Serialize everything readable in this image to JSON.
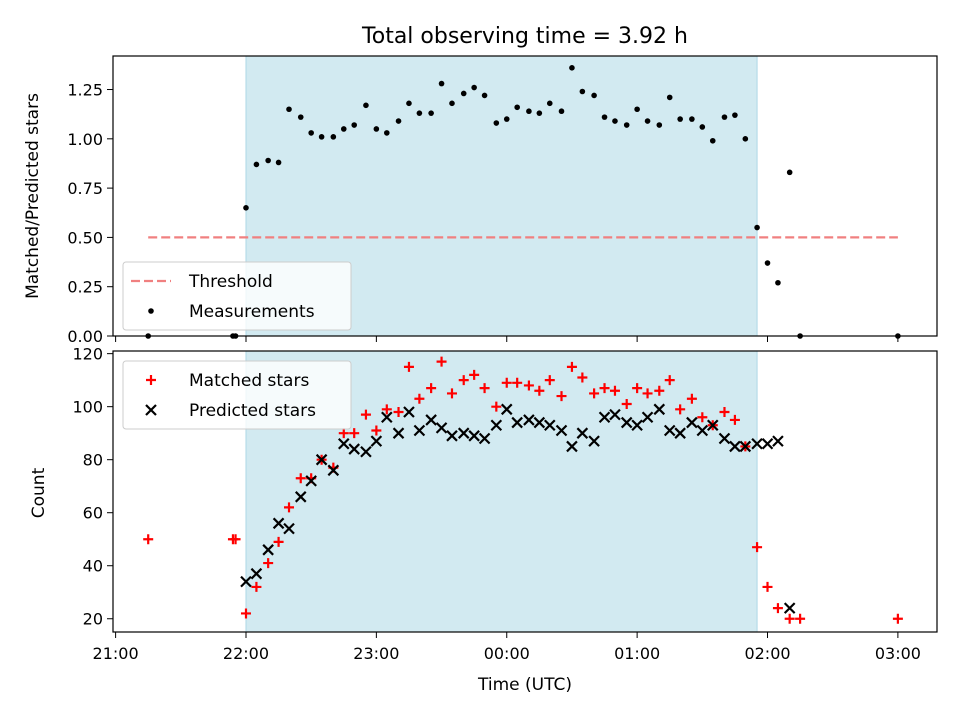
{
  "chart_data": {
    "title": "Total observing time = 3.92 h",
    "xlabel": "Time (UTC)",
    "x_ticks": [
      "21:00",
      "22:00",
      "23:00",
      "00:00",
      "01:00",
      "02:00",
      "03:00"
    ],
    "x_unit": "hours since 21:00 UTC",
    "x_range": [
      -0.02,
      6.3
    ],
    "shaded_window": [
      1.0,
      4.92
    ],
    "shade_color": "#add8e6",
    "panels": [
      {
        "type": "scatter",
        "ylabel": "Matched/Predicted stars",
        "ylim": [
          0,
          1.42
        ],
        "y_ticks": [
          "0.00",
          "0.25",
          "0.50",
          "0.75",
          "1.00",
          "1.25"
        ],
        "y_tick_values": [
          0,
          0.25,
          0.5,
          0.75,
          1.0,
          1.25
        ],
        "legend": "lower-left",
        "threshold": {
          "name": "Threshold",
          "value": 0.5,
          "x_from": 0.25,
          "x_to": 6.0,
          "color": "#f08080"
        },
        "series": [
          {
            "name": "Measurements",
            "marker": "dot",
            "color": "#000000",
            "points": [
              [
                0.25,
                0.0
              ],
              [
                0.9,
                0.0
              ],
              [
                0.92,
                0.0
              ],
              [
                1.0,
                0.65
              ],
              [
                1.08,
                0.87
              ],
              [
                1.17,
                0.89
              ],
              [
                1.25,
                0.88
              ],
              [
                1.33,
                1.15
              ],
              [
                1.42,
                1.11
              ],
              [
                1.5,
                1.03
              ],
              [
                1.58,
                1.01
              ],
              [
                1.67,
                1.01
              ],
              [
                1.75,
                1.05
              ],
              [
                1.83,
                1.07
              ],
              [
                1.92,
                1.17
              ],
              [
                2.0,
                1.05
              ],
              [
                2.08,
                1.03
              ],
              [
                2.17,
                1.09
              ],
              [
                2.25,
                1.18
              ],
              [
                2.33,
                1.13
              ],
              [
                2.42,
                1.13
              ],
              [
                2.5,
                1.28
              ],
              [
                2.58,
                1.18
              ],
              [
                2.67,
                1.23
              ],
              [
                2.75,
                1.26
              ],
              [
                2.83,
                1.22
              ],
              [
                2.92,
                1.08
              ],
              [
                3.0,
                1.1
              ],
              [
                3.08,
                1.16
              ],
              [
                3.17,
                1.14
              ],
              [
                3.25,
                1.13
              ],
              [
                3.33,
                1.18
              ],
              [
                3.42,
                1.14
              ],
              [
                3.5,
                1.36
              ],
              [
                3.58,
                1.24
              ],
              [
                3.67,
                1.22
              ],
              [
                3.75,
                1.11
              ],
              [
                3.83,
                1.09
              ],
              [
                3.92,
                1.07
              ],
              [
                4.0,
                1.15
              ],
              [
                4.08,
                1.09
              ],
              [
                4.17,
                1.07
              ],
              [
                4.25,
                1.21
              ],
              [
                4.33,
                1.1
              ],
              [
                4.42,
                1.1
              ],
              [
                4.5,
                1.06
              ],
              [
                4.58,
                0.99
              ],
              [
                4.67,
                1.11
              ],
              [
                4.75,
                1.12
              ],
              [
                4.83,
                1.0
              ],
              [
                4.92,
                0.55
              ],
              [
                5.0,
                0.37
              ],
              [
                5.08,
                0.27
              ],
              [
                5.17,
                0.83
              ],
              [
                5.25,
                0.0
              ],
              [
                6.0,
                0.0
              ]
            ]
          }
        ]
      },
      {
        "type": "scatter",
        "ylabel": "Count",
        "ylim": [
          15,
          121
        ],
        "y_ticks": [
          "20",
          "40",
          "60",
          "80",
          "100",
          "120"
        ],
        "y_tick_values": [
          20,
          40,
          60,
          80,
          100,
          120
        ],
        "legend": "top-left",
        "series": [
          {
            "name": "Matched stars",
            "marker": "plus",
            "color": "#ff0000",
            "points": [
              [
                0.25,
                50
              ],
              [
                0.9,
                50
              ],
              [
                0.92,
                50
              ],
              [
                1.0,
                22
              ],
              [
                1.08,
                32
              ],
              [
                1.17,
                41
              ],
              [
                1.25,
                49
              ],
              [
                1.33,
                62
              ],
              [
                1.42,
                73
              ],
              [
                1.5,
                73
              ],
              [
                1.58,
                80
              ],
              [
                1.67,
                77
              ],
              [
                1.75,
                90
              ],
              [
                1.83,
                90
              ],
              [
                1.92,
                97
              ],
              [
                2.0,
                91
              ],
              [
                2.08,
                99
              ],
              [
                2.17,
                98
              ],
              [
                2.25,
                115
              ],
              [
                2.33,
                103
              ],
              [
                2.42,
                107
              ],
              [
                2.5,
                117
              ],
              [
                2.58,
                105
              ],
              [
                2.67,
                110
              ],
              [
                2.75,
                112
              ],
              [
                2.83,
                107
              ],
              [
                2.92,
                100
              ],
              [
                3.0,
                109
              ],
              [
                3.08,
                109
              ],
              [
                3.17,
                108
              ],
              [
                3.25,
                106
              ],
              [
                3.33,
                110
              ],
              [
                3.42,
                104
              ],
              [
                3.5,
                115
              ],
              [
                3.58,
                111
              ],
              [
                3.67,
                105
              ],
              [
                3.75,
                107
              ],
              [
                3.83,
                106
              ],
              [
                3.92,
                101
              ],
              [
                4.0,
                107
              ],
              [
                4.08,
                105
              ],
              [
                4.17,
                106
              ],
              [
                4.25,
                110
              ],
              [
                4.33,
                99
              ],
              [
                4.42,
                103
              ],
              [
                4.5,
                96
              ],
              [
                4.58,
                93
              ],
              [
                4.67,
                98
              ],
              [
                4.75,
                95
              ],
              [
                4.83,
                85
              ],
              [
                4.92,
                47
              ],
              [
                5.0,
                32
              ],
              [
                5.08,
                24
              ],
              [
                5.17,
                20
              ],
              [
                5.25,
                20
              ],
              [
                6.0,
                20
              ]
            ]
          },
          {
            "name": "Predicted stars",
            "marker": "x",
            "color": "#000000",
            "points": [
              [
                1.0,
                34
              ],
              [
                1.08,
                37
              ],
              [
                1.17,
                46
              ],
              [
                1.25,
                56
              ],
              [
                1.33,
                54
              ],
              [
                1.42,
                66
              ],
              [
                1.5,
                72
              ],
              [
                1.58,
                80
              ],
              [
                1.67,
                76
              ],
              [
                1.75,
                86
              ],
              [
                1.83,
                84
              ],
              [
                1.92,
                83
              ],
              [
                2.0,
                87
              ],
              [
                2.08,
                96
              ],
              [
                2.17,
                90
              ],
              [
                2.25,
                98
              ],
              [
                2.33,
                91
              ],
              [
                2.42,
                95
              ],
              [
                2.5,
                92
              ],
              [
                2.58,
                89
              ],
              [
                2.67,
                90
              ],
              [
                2.75,
                89
              ],
              [
                2.83,
                88
              ],
              [
                2.92,
                93
              ],
              [
                3.0,
                99
              ],
              [
                3.08,
                94
              ],
              [
                3.17,
                95
              ],
              [
                3.25,
                94
              ],
              [
                3.33,
                93
              ],
              [
                3.42,
                91
              ],
              [
                3.5,
                85
              ],
              [
                3.58,
                90
              ],
              [
                3.67,
                87
              ],
              [
                3.75,
                96
              ],
              [
                3.83,
                97
              ],
              [
                3.92,
                94
              ],
              [
                4.0,
                93
              ],
              [
                4.08,
                96
              ],
              [
                4.17,
                99
              ],
              [
                4.25,
                91
              ],
              [
                4.33,
                90
              ],
              [
                4.42,
                94
              ],
              [
                4.5,
                91
              ],
              [
                4.58,
                93
              ],
              [
                4.67,
                88
              ],
              [
                4.75,
                85
              ],
              [
                4.83,
                85
              ],
              [
                4.92,
                86
              ],
              [
                5.0,
                86
              ],
              [
                5.08,
                87
              ],
              [
                5.17,
                24
              ]
            ]
          }
        ]
      }
    ]
  }
}
